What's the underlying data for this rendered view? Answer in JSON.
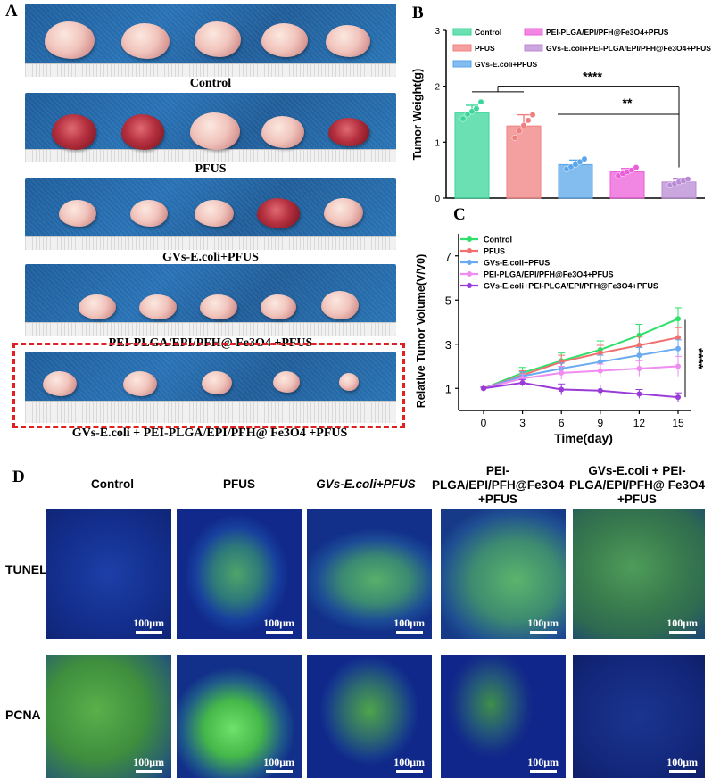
{
  "panel_labels": {
    "a": "A",
    "b": "B",
    "c": "C",
    "d": "D"
  },
  "panel_a": {
    "groups": [
      {
        "label": "Control"
      },
      {
        "label": "PFUS"
      },
      {
        "label": "GVs-E.coli+PFUS"
      },
      {
        "label": "PEI-PLGA/EPI/PFH@ Fe3O4 +PFUS"
      },
      {
        "label": "GVs-E.coli + PEI-PLGA/EPI/PFH@ Fe3O4 +PFUS"
      }
    ]
  },
  "panel_d": {
    "columns": [
      "Control",
      "PFUS",
      "GVs-E.coli+PFUS",
      "PEI-PLGA/EPI/PFH@Fe3O4 +PFUS",
      "GVs-E.coli + PEI-PLGA/EPI/PFH@ Fe3O4 +PFUS"
    ],
    "rows": [
      "TUNEL",
      "PCNA"
    ],
    "scale_bar": "100μm"
  },
  "chart_data": [
    {
      "type": "bar",
      "panel": "B",
      "ylabel": "Tumor Weight(g)",
      "ylim": [
        0,
        3
      ],
      "yticks": [
        0,
        1,
        2,
        3
      ],
      "categories": [
        "Control",
        "PFUS",
        "GVs-E.coli+PFUS",
        "PEI-PLGA/EPI/PFH@Fe3O4+PFUS",
        "GVs-E.coli+PEI-PLGA/EPI/PFH@Fe3O4+PFUS"
      ],
      "values": [
        1.53,
        1.29,
        0.6,
        0.47,
        0.29
      ],
      "errors": [
        0.13,
        0.2,
        0.08,
        0.06,
        0.05
      ],
      "colors": [
        "#3ad69a",
        "#f08080",
        "#5aa6ea",
        "#ec5dda",
        "#b98ad6"
      ],
      "points": [
        [
          1.42,
          1.5,
          1.55,
          1.6,
          1.72
        ],
        [
          1.08,
          1.2,
          1.3,
          1.39,
          1.49
        ],
        [
          0.52,
          0.56,
          0.6,
          0.65,
          0.7
        ],
        [
          0.4,
          0.44,
          0.47,
          0.5,
          0.55
        ],
        [
          0.23,
          0.26,
          0.29,
          0.31,
          0.34
        ]
      ],
      "legend_labels": [
        "Control",
        "PFUS",
        "GVs-E.coli+PFUS",
        "PEI-PLGA/EPI/PFH@Fe3O4+PFUS",
        "GVs-E.coli+PEI-PLGA/EPI/PFH@Fe3O4+PFUS"
      ],
      "significance": [
        "****",
        "**"
      ],
      "legend_position": "top"
    },
    {
      "type": "line",
      "panel": "C",
      "xlabel": "Time(day)",
      "ylabel": "Relative Tumor Volume(V/V0)",
      "x": [
        0,
        3,
        6,
        9,
        12,
        15
      ],
      "xlim": [
        0,
        15
      ],
      "ylim": [
        0,
        8
      ],
      "yticks": [
        1,
        3,
        5,
        7
      ],
      "series": [
        {
          "name": "Control",
          "color": "#2ee06a",
          "values": [
            1.0,
            1.7,
            2.25,
            2.75,
            3.4,
            4.15
          ],
          "errors": [
            0.05,
            0.25,
            0.35,
            0.4,
            0.5,
            0.5
          ]
        },
        {
          "name": "PFUS",
          "color": "#f07070",
          "values": [
            1.0,
            1.6,
            2.2,
            2.6,
            2.95,
            3.3
          ],
          "errors": [
            0.05,
            0.2,
            0.3,
            0.35,
            0.4,
            0.45
          ]
        },
        {
          "name": "GVs-E.coli+PFUS",
          "color": "#6aaaf0",
          "values": [
            1.0,
            1.55,
            1.9,
            2.2,
            2.5,
            2.8
          ],
          "errors": [
            0.05,
            0.2,
            0.25,
            0.3,
            0.35,
            0.4
          ]
        },
        {
          "name": "PEI-PLGA/EPI/PFH@Fe3O4+PFUS",
          "color": "#f08cf0",
          "values": [
            1.0,
            1.45,
            1.7,
            1.8,
            1.9,
            2.0
          ],
          "errors": [
            0.05,
            0.2,
            0.3,
            0.3,
            0.35,
            0.45
          ]
        },
        {
          "name": "GVs-E.coli+PEI-PLGA/EPI/PFH@Fe3O4+PFUS",
          "color": "#9a3ad8",
          "values": [
            1.0,
            1.25,
            0.95,
            0.9,
            0.75,
            0.6
          ],
          "errors": [
            0.05,
            0.15,
            0.25,
            0.25,
            0.2,
            0.2
          ]
        }
      ],
      "significance": "****",
      "legend_position": "top-left"
    }
  ]
}
